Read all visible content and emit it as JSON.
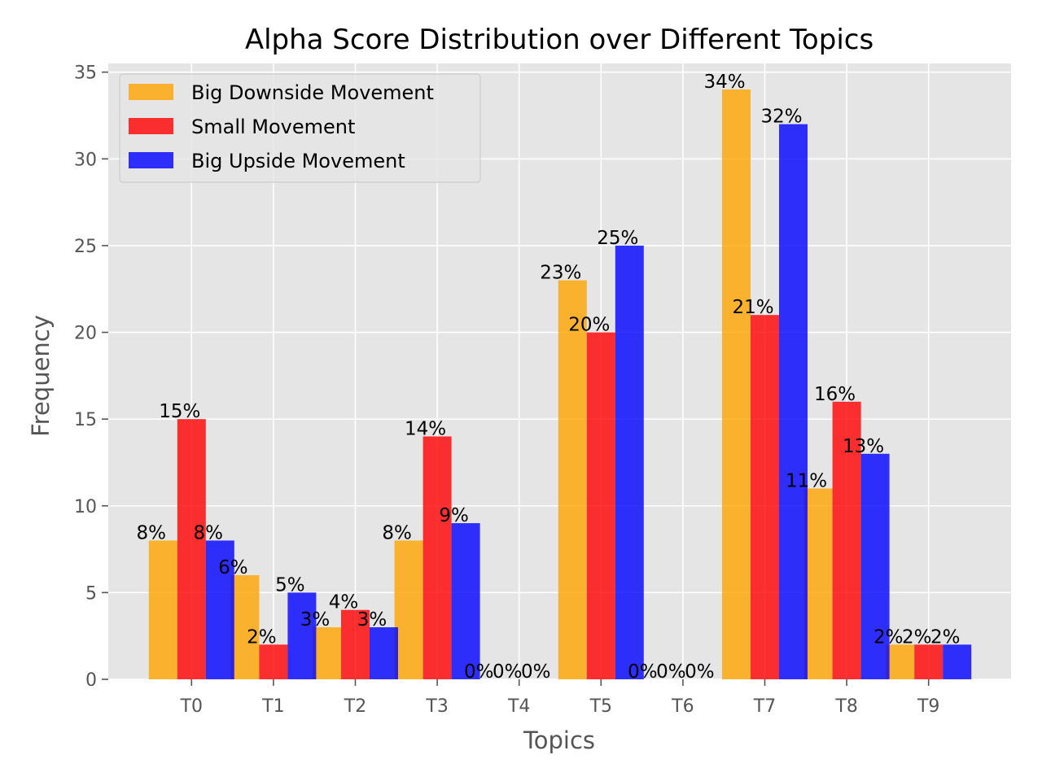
{
  "chart_data": {
    "type": "bar",
    "title": "Alpha Score Distribution over Different Topics",
    "xlabel": "Topics",
    "ylabel": "Frequency",
    "categories": [
      "T0",
      "T1",
      "T2",
      "T3",
      "T4",
      "T5",
      "T6",
      "T7",
      "T8",
      "T9"
    ],
    "ylim": [
      0,
      35.5
    ],
    "yticks": [
      0,
      5,
      10,
      15,
      20,
      25,
      30,
      35
    ],
    "grid": true,
    "legend_position": "top-left",
    "background": "#e5e5e5",
    "series": [
      {
        "name": "Big Downside Movement",
        "color": "#ffa500",
        "values": [
          8,
          6,
          3,
          8,
          0,
          23,
          0,
          34,
          11,
          2
        ],
        "labels": [
          "8%",
          "6%",
          "3%",
          "8%",
          "0%",
          "23%",
          "0%",
          "34%",
          "11%",
          "2%"
        ]
      },
      {
        "name": "Small Movement",
        "color": "#ff0000",
        "values": [
          15,
          2,
          4,
          14,
          0,
          20,
          0,
          21,
          16,
          2
        ],
        "labels": [
          "15%",
          "2%",
          "4%",
          "14%",
          "0%",
          "20%",
          "0%",
          "21%",
          "16%",
          "2%"
        ]
      },
      {
        "name": "Big Upside Movement",
        "color": "#0000ff",
        "values": [
          8,
          5,
          3,
          9,
          0,
          25,
          0,
          32,
          13,
          2
        ],
        "labels": [
          "8%",
          "5%",
          "3%",
          "9%",
          "0%",
          "25%",
          "0%",
          "32%",
          "13%",
          "2%"
        ]
      }
    ]
  }
}
